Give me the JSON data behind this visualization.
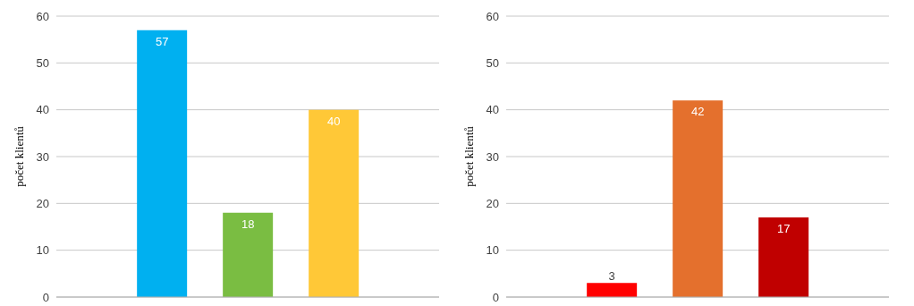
{
  "chart_data": [
    {
      "type": "bar",
      "ylabel": "počet klientů",
      "categories": [
        null,
        null,
        null
      ],
      "values": [
        57,
        18,
        40
      ],
      "colors": [
        "#00b0f0",
        "#7abd42",
        "#ffc837"
      ],
      "ylim": [
        0,
        60
      ],
      "yticks": [
        0,
        10,
        20,
        30,
        40,
        50,
        60
      ],
      "grid": "y",
      "data_labels": true,
      "legend": false
    },
    {
      "type": "bar",
      "ylabel": "počet klientů",
      "categories": [
        null,
        null,
        null
      ],
      "values": [
        3,
        42,
        17
      ],
      "colors": [
        "#ff0000",
        "#e4702d",
        "#c00000"
      ],
      "ylim": [
        0,
        60
      ],
      "yticks": [
        0,
        10,
        20,
        30,
        40,
        50,
        60
      ],
      "grid": "y",
      "data_labels": true,
      "legend": false
    }
  ]
}
